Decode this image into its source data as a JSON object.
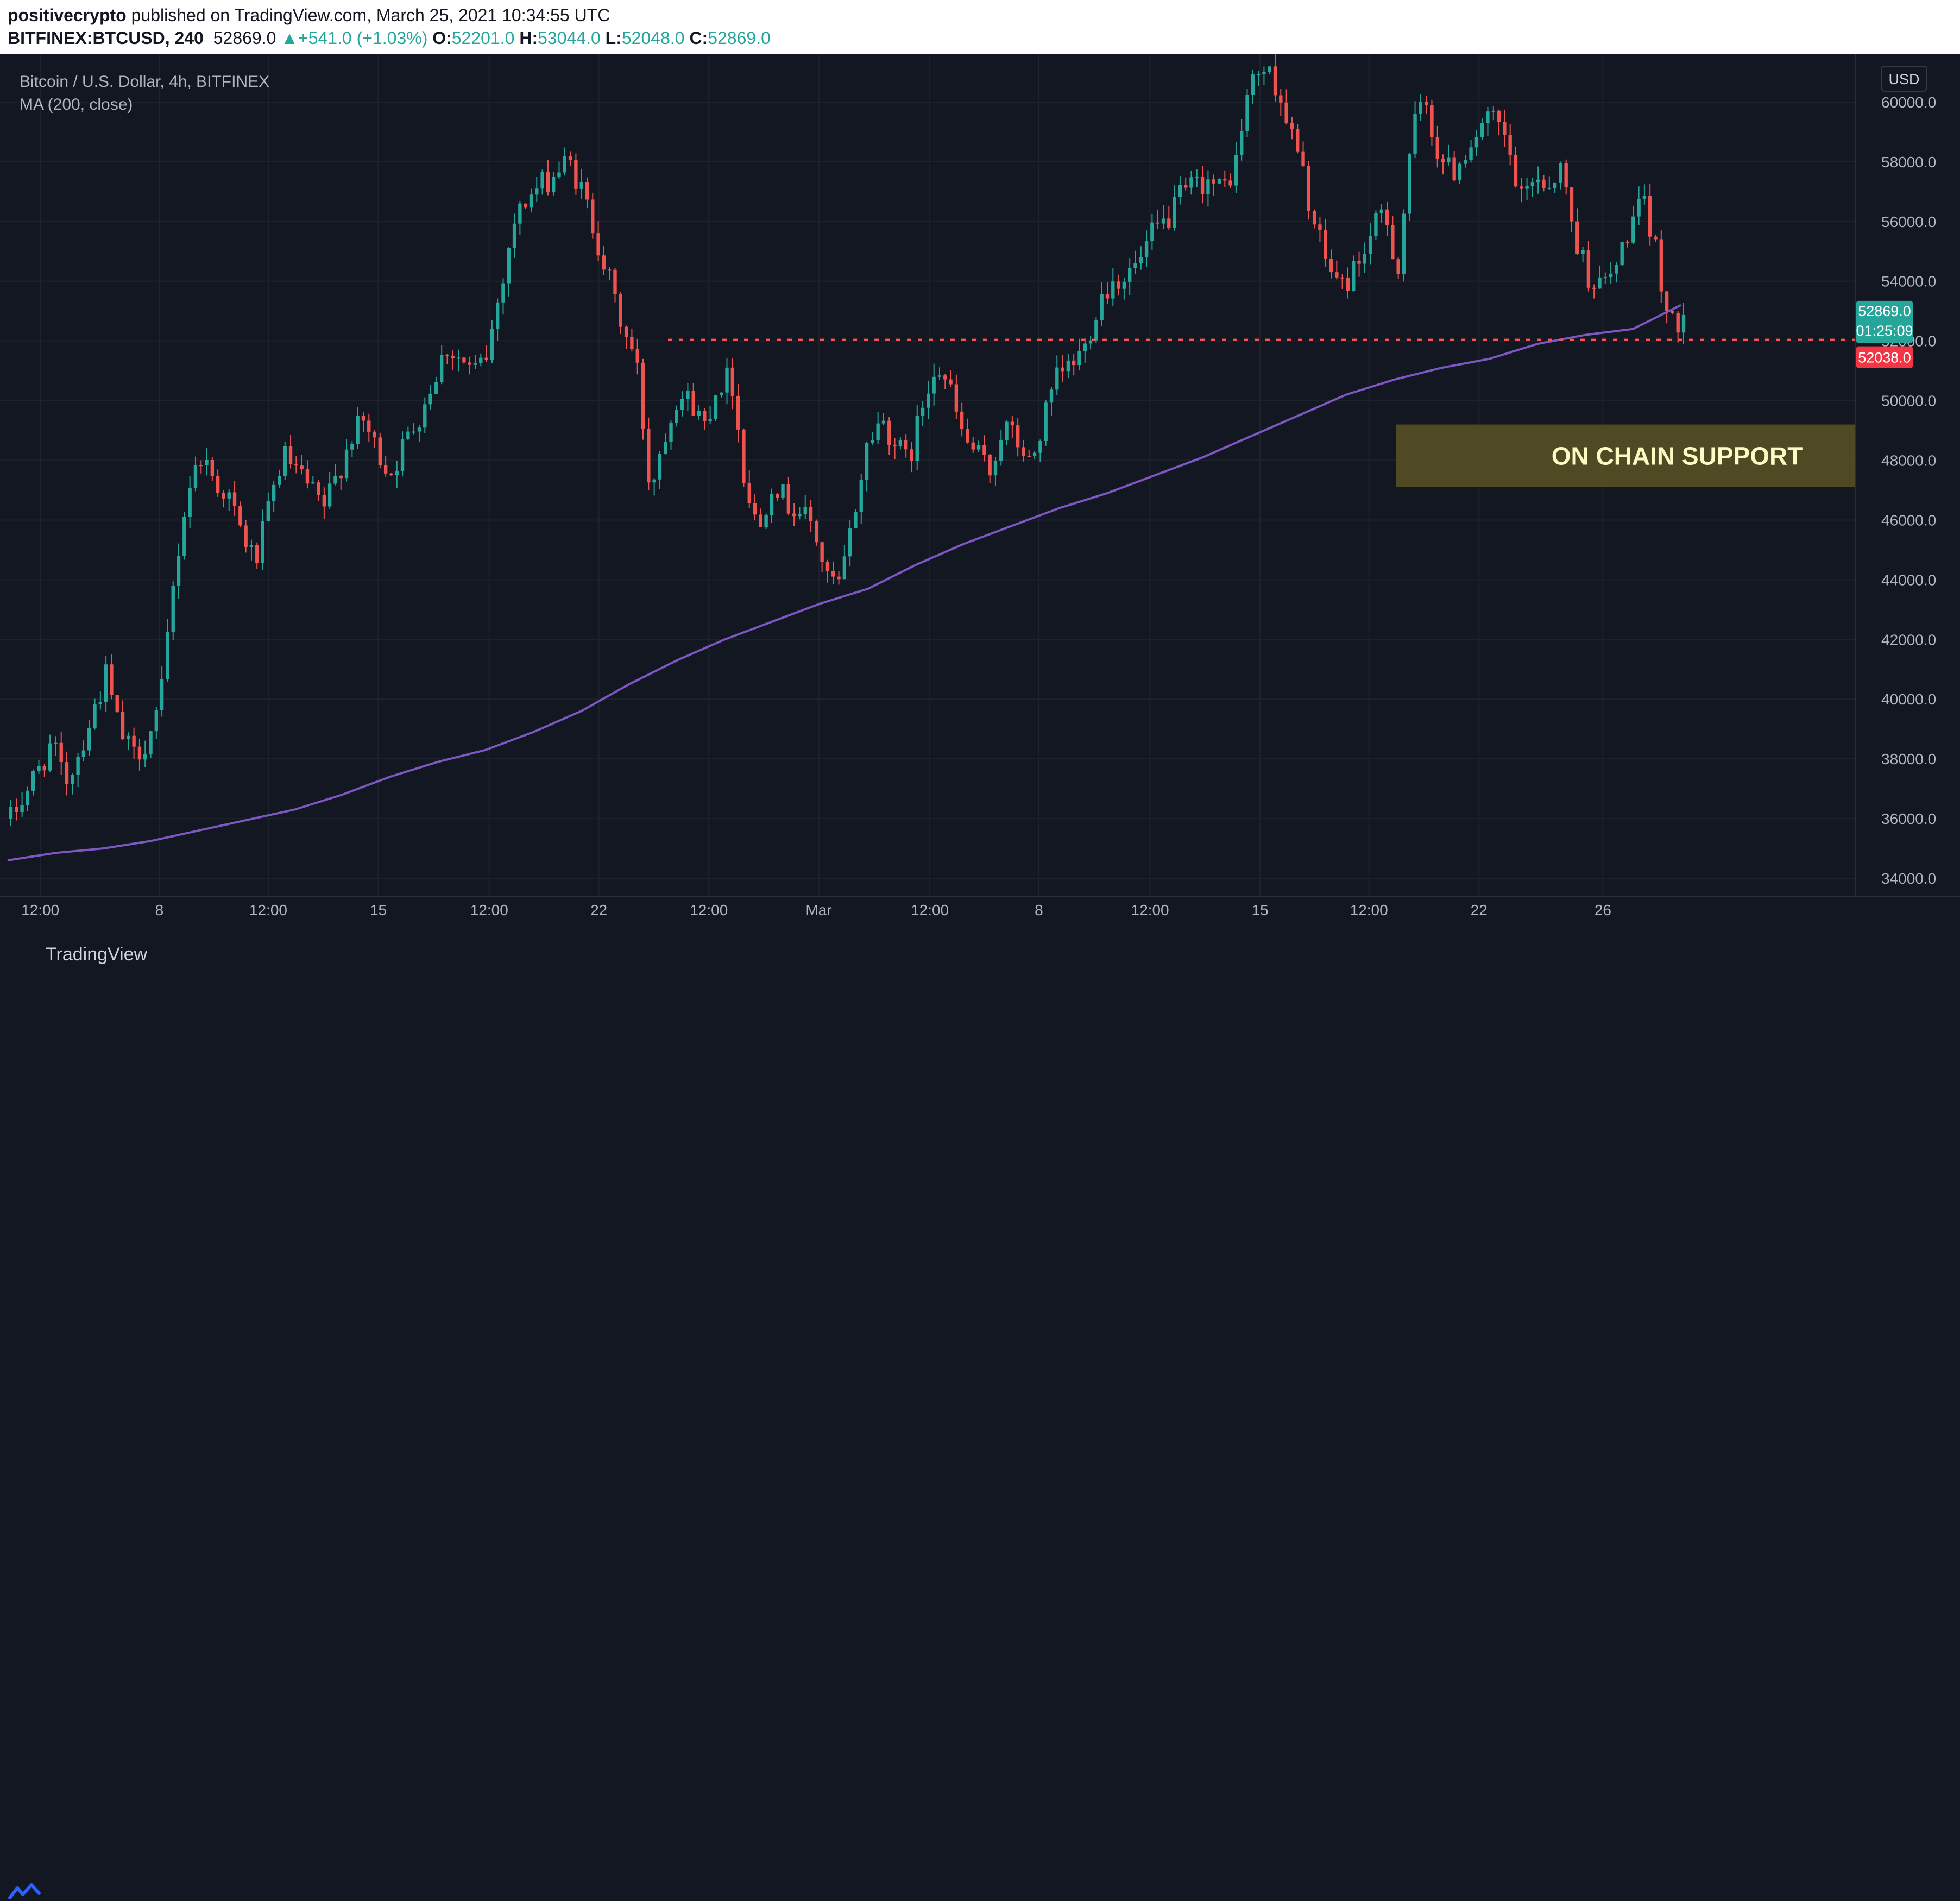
{
  "header": {
    "author": "positivecrypto",
    "published_text": "published on TradingView.com, March 25, 2021 10:34:55 UTC",
    "symbol": "BITFINEX:BTCUSD, 240",
    "last": "52869.0",
    "change": "+541.0 (+1.03%)",
    "o_label": "O:",
    "o_value": "52201.0",
    "h_label": "H:",
    "h_value": "53044.0",
    "l_label": "L:",
    "l_value": "52048.0",
    "c_label": "C:",
    "c_value": "52869.0"
  },
  "legend": {
    "title": "Bitcoin / U.S. Dollar, 4h, BITFINEX",
    "ma": "MA (200, close)"
  },
  "currency_button": "USD",
  "price_tag": {
    "price": "52869.0",
    "countdown": "01:25:09",
    "level": "52038.0"
  },
  "annotation": {
    "text": "ON CHAIN SUPPORT",
    "low": 47100,
    "high": 49200
  },
  "footer": {
    "brand": "TradingView"
  },
  "colors": {
    "bull": "#26a69a",
    "bear": "#ef5350",
    "ma": "#7e57c2",
    "support": "#ff5252",
    "annotation_bg": "#5c5424",
    "annotation_text": "#fff9c4"
  },
  "chart_data": {
    "type": "candlestick",
    "title": "Bitcoin / U.S. Dollar, 4h, BITFINEX",
    "ylim": [
      33400,
      61600
    ],
    "y_ticks": [
      "60000.0",
      "58000.0",
      "56000.0",
      "54000.0",
      "52000.0",
      "50000.0",
      "48000.0",
      "46000.0",
      "44000.0",
      "42000.0",
      "40000.0",
      "38000.0",
      "36000.0",
      "34000.0"
    ],
    "x_ticks": [
      {
        "label": "12:00",
        "pos": 0.0217
      },
      {
        "label": "8",
        "pos": 0.0859
      },
      {
        "label": "12:00",
        "pos": 0.1446
      },
      {
        "label": "15",
        "pos": 0.2039
      },
      {
        "label": "12:00",
        "pos": 0.2637
      },
      {
        "label": "22",
        "pos": 0.3228
      },
      {
        "label": "12:00",
        "pos": 0.3821
      },
      {
        "label": "Mar",
        "pos": 0.4413
      },
      {
        "label": "12:00",
        "pos": 0.5012
      },
      {
        "label": "8",
        "pos": 0.56
      },
      {
        "label": "12:00",
        "pos": 0.6199
      },
      {
        "label": "15",
        "pos": 0.6792
      },
      {
        "label": "12:00",
        "pos": 0.7379
      },
      {
        "label": "22",
        "pos": 0.7972
      },
      {
        "label": "26",
        "pos": 0.864
      }
    ],
    "support_level": 52038,
    "last_close": 52869,
    "price_path": [
      36000,
      36800,
      37600,
      38500,
      37200,
      38200,
      39500,
      40800,
      38900,
      38100,
      38600,
      39800,
      44000,
      47000,
      48200,
      47300,
      46800,
      45500,
      44600,
      46400,
      48200,
      47600,
      47000,
      46400,
      47500,
      48800,
      49300,
      48200,
      47600,
      48600,
      49500,
      50600,
      51800,
      51400,
      50900,
      51500,
      53800,
      56000,
      56800,
      57200,
      57600,
      58000,
      57000,
      55600,
      54000,
      52400,
      51300,
      47000,
      48800,
      50200,
      50000,
      49200,
      50600,
      50800,
      47200,
      45600,
      47400,
      46600,
      46300,
      45800,
      44000,
      43800,
      46200,
      48600,
      49400,
      48600,
      47900,
      49800,
      51400,
      50400,
      48800,
      48200,
      47600,
      49200,
      48600,
      47800,
      49400,
      50800,
      51200,
      51800,
      53400,
      54000,
      54200,
      54600,
      55600,
      56000,
      56800,
      57200,
      57400,
      57000,
      57800,
      60400,
      61200,
      60600,
      59200,
      57600,
      55600,
      54400,
      53800,
      54600,
      55500,
      56400,
      54300,
      59000,
      60000,
      58200,
      57600,
      58400,
      59100,
      59400,
      58600,
      56600,
      57600,
      57200,
      57800,
      55500,
      54200,
      53800,
      54400,
      55800,
      56600,
      55000,
      52400,
      52869
    ],
    "ma_path": [
      34600,
      34850,
      35000,
      35250,
      35600,
      35950,
      36300,
      36800,
      37400,
      37900,
      38300,
      38900,
      39600,
      40500,
      41300,
      42000,
      42600,
      43200,
      43700,
      44500,
      45200,
      45800,
      46400,
      46900,
      47500,
      48100,
      48800,
      49500,
      50200,
      50700,
      51100,
      51400,
      51900,
      52200,
      52400,
      53200
    ]
  }
}
